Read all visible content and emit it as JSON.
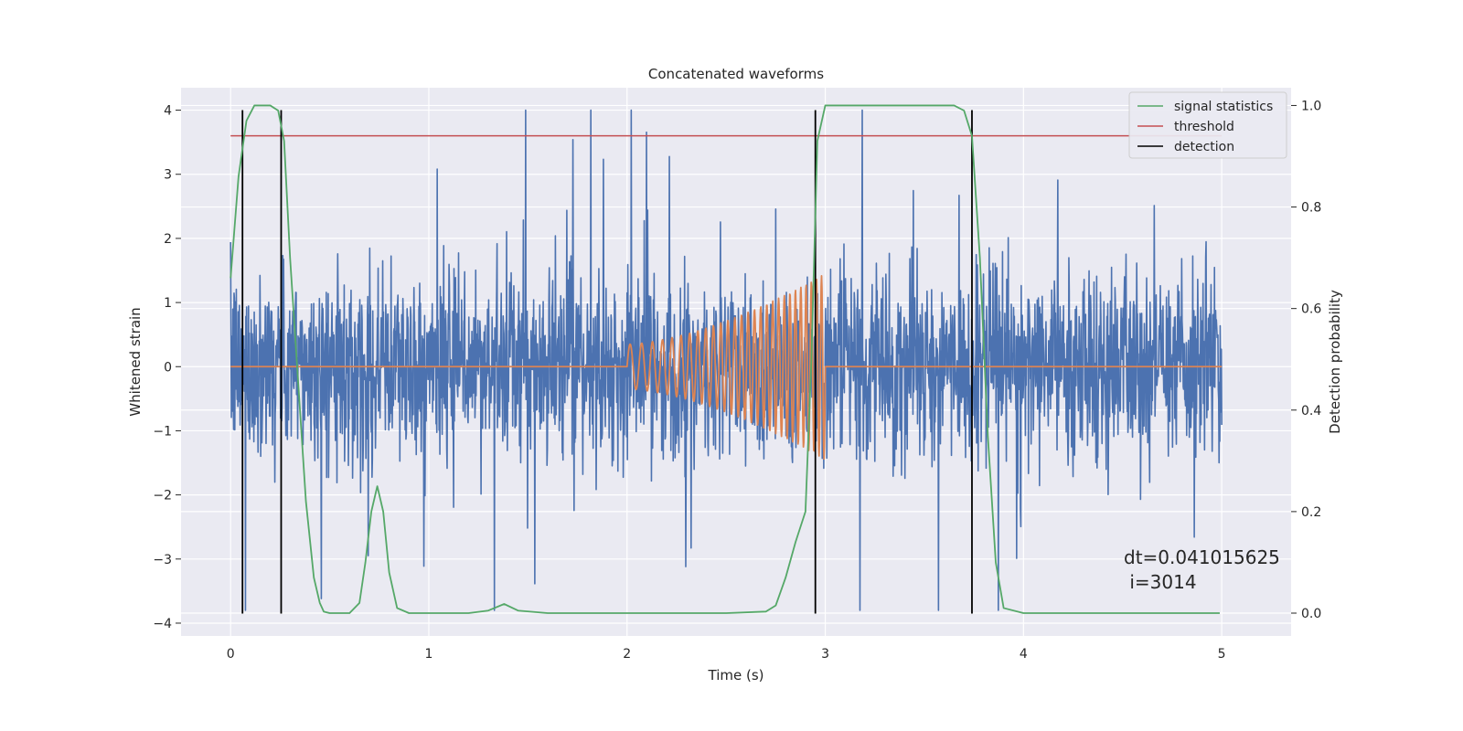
{
  "chart_data": {
    "type": "line",
    "title": "Concatenated waveforms",
    "xlabel": "Time (s)",
    "ylabel": "Whitened strain",
    "ylabel_right": "Detection probability",
    "xlim": [
      -0.25,
      5.35
    ],
    "ylim": [
      -4.2,
      4.35
    ],
    "ylim_right": [
      -0.045,
      1.035
    ],
    "x_ticks": [
      "0",
      "1",
      "2",
      "3",
      "4",
      "5"
    ],
    "y_ticks": [
      "4",
      "3",
      "2",
      "1",
      "0",
      "−1",
      "−2",
      "−3",
      "−4"
    ],
    "y_right_ticks": [
      "1.0",
      "0.8",
      "0.6",
      "0.4",
      "0.2",
      "0.0"
    ],
    "grid": true,
    "legend_position": "top-right",
    "legend": [
      {
        "label": "signal statistics",
        "color": "#55a868"
      },
      {
        "label": "threshold",
        "color": "#c44e52"
      },
      {
        "label": "detection",
        "color": "#000000"
      }
    ],
    "series": [
      {
        "role": "whitened-strain-noise",
        "color": "#4c72b0",
        "x_range": [
          0,
          5
        ],
        "envelope": 0.7,
        "peak_extent": [
          -3.8,
          4.0
        ]
      },
      {
        "role": "injected-chirp",
        "color": "#dd8452",
        "x_range": [
          0,
          5
        ],
        "chirp_start": 2.0,
        "chirp_end": 3.0,
        "amplitude_start": 0.35,
        "amplitude_end": 1.45,
        "freq_start": 16,
        "freq_end": 40
      },
      {
        "name": "signal statistics",
        "axis": "right",
        "color": "#55a868",
        "x": [
          0,
          0.04,
          0.08,
          0.12,
          0.16,
          0.2,
          0.24,
          0.27,
          0.3,
          0.34,
          0.38,
          0.42,
          0.45,
          0.47,
          0.5,
          0.55,
          0.6,
          0.65,
          0.68,
          0.71,
          0.74,
          0.77,
          0.8,
          0.84,
          0.9,
          1.0,
          1.2,
          1.3,
          1.38,
          1.45,
          1.6,
          2.0,
          2.5,
          2.7,
          2.75,
          2.8,
          2.85,
          2.9,
          2.93,
          2.96,
          3.0,
          3.1,
          3.5,
          3.65,
          3.7,
          3.74,
          3.78,
          3.82,
          3.86,
          3.9,
          4.0,
          4.5,
          4.9,
          4.99
        ],
        "y": [
          0.66,
          0.86,
          0.97,
          1.0,
          1.0,
          1.0,
          0.99,
          0.93,
          0.7,
          0.46,
          0.22,
          0.07,
          0.02,
          0.003,
          0.0,
          0.0,
          0.0,
          0.02,
          0.1,
          0.2,
          0.25,
          0.2,
          0.08,
          0.01,
          0.0,
          0.0,
          0.0,
          0.005,
          0.018,
          0.005,
          0.0,
          0.0,
          0.0,
          0.003,
          0.015,
          0.07,
          0.14,
          0.2,
          0.5,
          0.93,
          1.0,
          1.0,
          1.0,
          1.0,
          0.99,
          0.94,
          0.7,
          0.35,
          0.1,
          0.01,
          0.0,
          0.0,
          0.0,
          0.0
        ]
      },
      {
        "name": "threshold",
        "color": "#c44e52",
        "x": [
          0,
          5
        ],
        "y": [
          3.6,
          3.6
        ]
      }
    ],
    "detections": {
      "name": "detection",
      "color": "#000000",
      "x": [
        0.06,
        0.255,
        2.95,
        3.74
      ],
      "y_range": [
        -3.85,
        4.0
      ]
    },
    "annotation": {
      "line1": "dt=0.041015625",
      "line2": " i=3014",
      "x": 4.5,
      "y": -3.15
    }
  }
}
